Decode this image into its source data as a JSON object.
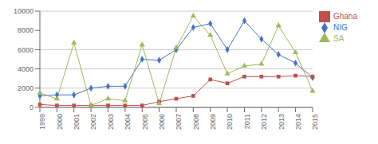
{
  "chart_data": {
    "type": "line",
    "categories": [
      "1999",
      "2000",
      "2001",
      "2002",
      "2003",
      "2004",
      "2005",
      "2006",
      "2007",
      "2008",
      "2009",
      "2010",
      "2011",
      "2012",
      "2013",
      "2014",
      "2015"
    ],
    "series": [
      {
        "name": "NIG",
        "color": "#4472c4",
        "marker": "diamond",
        "values": [
          1200,
          1300,
          1300,
          2000,
          2200,
          2200,
          5000,
          4900,
          6000,
          8300,
          8700,
          6000,
          9000,
          7100,
          5500,
          4600,
          3100
        ]
      },
      {
        "name": "Ghana",
        "color": "#c0504d",
        "marker": "square",
        "values": [
          300,
          200,
          200,
          200,
          200,
          200,
          200,
          600,
          900,
          1200,
          2900,
          2500,
          3200,
          3200,
          3200,
          3300,
          3200
        ]
      },
      {
        "name": "SA",
        "color": "#9bbb59",
        "marker": "triangle",
        "values": [
          1500,
          900,
          6700,
          200,
          900,
          700,
          6500,
          400,
          6200,
          9500,
          7500,
          3500,
          4300,
          4500,
          8500,
          5700,
          1700
        ]
      }
    ],
    "ylim": [
      0,
      10000
    ],
    "yticks": [
      0,
      2000,
      4000,
      6000,
      8000,
      10000
    ],
    "grid": true,
    "legend": "right"
  }
}
